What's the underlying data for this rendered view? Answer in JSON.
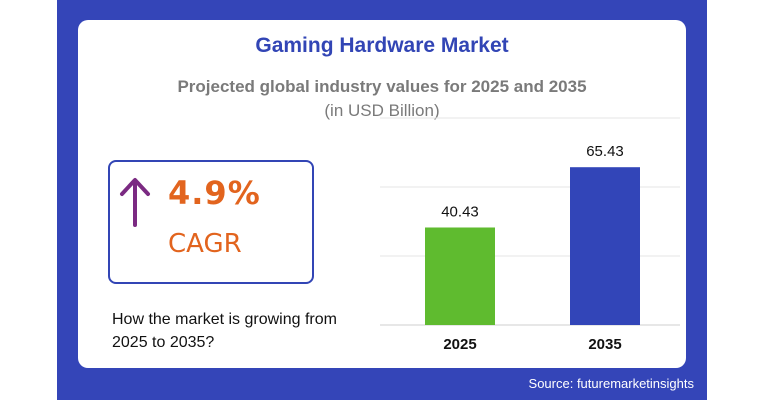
{
  "header": {
    "title": "Gaming Hardware Market",
    "subtitle": "Projected global industry values for 2025 and 2035",
    "unit": "(in USD Billion)"
  },
  "cagr": {
    "value": "4.9%",
    "label": "CAGR",
    "arrow_icon": "arrow-up-icon",
    "arrow_color": "#7b2a82"
  },
  "question": "How the market is growing from 2025 to 2035?",
  "source": "Source: futuremarketinsights",
  "colors": {
    "frame": "#3445b8",
    "title": "#3245b5",
    "accent": "#e2641e"
  },
  "chart_data": {
    "type": "bar",
    "categories": [
      "2025",
      "2035"
    ],
    "values": [
      40.43,
      65.43
    ],
    "value_labels": [
      "40.43",
      "65.43"
    ],
    "colors": [
      "#5fbb2f",
      "#3245b8"
    ],
    "ylim": [
      0,
      85
    ],
    "grid": true,
    "legend": "none"
  }
}
